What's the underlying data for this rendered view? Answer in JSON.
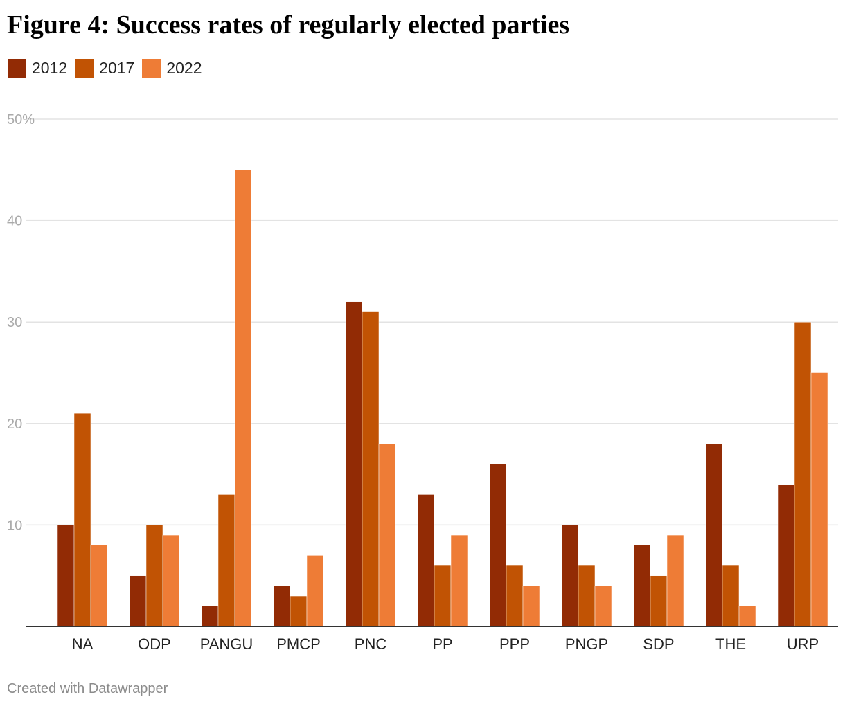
{
  "title": "Figure 4: Success rates of regularly elected parties",
  "footer": "Created with Datawrapper",
  "colors": {
    "2012": "#922b05",
    "2017": "#c15304",
    "2022": "#ee7c36",
    "grid": "#e3e3e3",
    "axis": "#333333",
    "tick_text": "#aaaaaa",
    "category_text": "#222222"
  },
  "chart_data": {
    "type": "bar",
    "title": "Figure 4: Success rates of regularly elected parties",
    "xlabel": "",
    "ylabel": "",
    "ylim": [
      0,
      50
    ],
    "y_ticks": [
      10,
      20,
      30,
      40,
      50
    ],
    "y_tick_labels": [
      "10",
      "20",
      "30",
      "40",
      "50%"
    ],
    "grid": true,
    "legend": "top-left",
    "categories": [
      "NA",
      "ODP",
      "PANGU",
      "PMCP",
      "PNC",
      "PP",
      "PPP",
      "PNGP",
      "SDP",
      "THE",
      "URP"
    ],
    "series": [
      {
        "name": "2012",
        "color": "#922b05",
        "values": [
          10,
          5,
          2,
          4,
          32,
          13,
          16,
          10,
          8,
          18,
          14
        ]
      },
      {
        "name": "2017",
        "color": "#c15304",
        "values": [
          21,
          10,
          13,
          3,
          31,
          6,
          6,
          6,
          5,
          6,
          30
        ]
      },
      {
        "name": "2022",
        "color": "#ee7c36",
        "values": [
          8,
          9,
          45,
          7,
          18,
          9,
          4,
          4,
          9,
          2,
          25
        ]
      }
    ]
  }
}
